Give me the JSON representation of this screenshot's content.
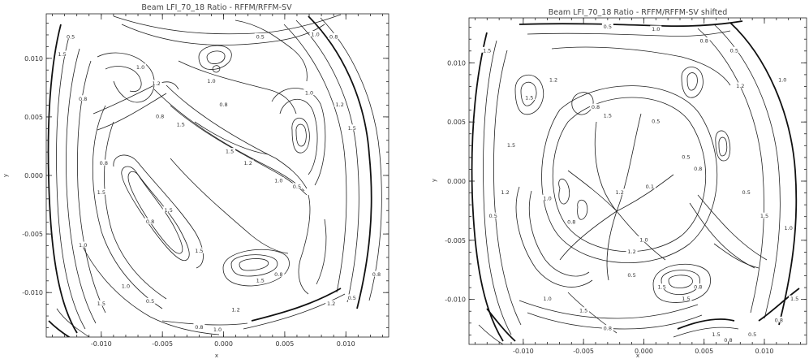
{
  "chart_data": [
    {
      "type": "contour",
      "title": "Beam LFI_70_18 Ratio - RFFM/RFFM-SV",
      "xlabel": "x",
      "ylabel": "y",
      "xlim": [
        -0.0145,
        0.0135
      ],
      "ylim": [
        -0.0138,
        0.0138
      ],
      "xticks": [
        -0.01,
        -0.005,
        0.0,
        0.005,
        0.01
      ],
      "xtick_labels": [
        "-0.010",
        "-0.005",
        "0.000",
        "0.005",
        "0.010"
      ],
      "yticks": [
        -0.01,
        -0.005,
        0.0,
        0.005,
        0.01
      ],
      "ytick_labels": [
        "-0.010",
        "-0.005",
        "0.000",
        "0.005",
        "0.010"
      ],
      "levels": [
        0.5,
        0.8,
        1.0,
        1.2,
        1.5
      ],
      "contour_labels": [
        {
          "text": "0.5",
          "x": -0.0125,
          "y": 0.0118
        },
        {
          "text": "1.5",
          "x": -0.0132,
          "y": 0.0103
        },
        {
          "text": "0.8",
          "x": -0.0115,
          "y": 0.0065
        },
        {
          "text": "1.2",
          "x": -0.0055,
          "y": 0.0078
        },
        {
          "text": "1.0",
          "x": -0.0068,
          "y": 0.0092
        },
        {
          "text": "0.8",
          "x": -0.0052,
          "y": 0.005
        },
        {
          "text": "1.5",
          "x": -0.0035,
          "y": 0.0043
        },
        {
          "text": "1.0",
          "x": -0.001,
          "y": 0.008
        },
        {
          "text": "0.8",
          "x": 0.0,
          "y": 0.006
        },
        {
          "text": "1.5",
          "x": 0.0005,
          "y": 0.002
        },
        {
          "text": "1.2",
          "x": 0.002,
          "y": 0.001
        },
        {
          "text": "0.5",
          "x": 0.006,
          "y": -0.001
        },
        {
          "text": "1.0",
          "x": 0.0045,
          "y": -0.0005
        },
        {
          "text": "0.5",
          "x": 0.003,
          "y": 0.0118
        },
        {
          "text": "1.0",
          "x": 0.0075,
          "y": 0.012
        },
        {
          "text": "0.8",
          "x": 0.009,
          "y": 0.0118
        },
        {
          "text": "1.0",
          "x": 0.007,
          "y": 0.007
        },
        {
          "text": "1.2",
          "x": 0.0095,
          "y": 0.006
        },
        {
          "text": "1.5",
          "x": 0.0105,
          "y": 0.004
        },
        {
          "text": "0.8",
          "x": -0.0098,
          "y": 0.001
        },
        {
          "text": "1.5",
          "x": -0.01,
          "y": -0.0015
        },
        {
          "text": "0.8",
          "x": -0.006,
          "y": -0.004
        },
        {
          "text": "1.5",
          "x": -0.0045,
          "y": -0.003
        },
        {
          "text": "1.0",
          "x": -0.0115,
          "y": -0.006
        },
        {
          "text": "1.5",
          "x": -0.002,
          "y": -0.0065
        },
        {
          "text": "1.5",
          "x": -0.01,
          "y": -0.011
        },
        {
          "text": "1.0",
          "x": -0.008,
          "y": -0.0095
        },
        {
          "text": "0.5",
          "x": -0.006,
          "y": -0.0108
        },
        {
          "text": "0.8",
          "x": 0.0045,
          "y": -0.0085
        },
        {
          "text": "1.5",
          "x": 0.003,
          "y": -0.009
        },
        {
          "text": "1.2",
          "x": 0.001,
          "y": -0.0115
        },
        {
          "text": "0.8",
          "x": -0.002,
          "y": -0.013
        },
        {
          "text": "1.0",
          "x": -0.0005,
          "y": -0.0132
        },
        {
          "text": "1.2",
          "x": 0.0088,
          "y": -0.011
        },
        {
          "text": "0.5",
          "x": 0.0105,
          "y": -0.0105
        },
        {
          "text": "0.8",
          "x": 0.0125,
          "y": -0.0085
        }
      ]
    },
    {
      "type": "contour",
      "title": "Beam LFI_70_18 Ratio - RFFM/RFFM-SV shifted",
      "xlabel": "x",
      "ylabel": "y",
      "xlim": [
        -0.0145,
        0.0135
      ],
      "ylim": [
        -0.0138,
        0.0138
      ],
      "xticks": [
        -0.01,
        -0.005,
        0.0,
        0.005,
        0.01
      ],
      "xtick_labels": [
        "-0.010",
        "-0.005",
        "0.000",
        "0.005",
        "0.010"
      ],
      "yticks": [
        -0.01,
        -0.005,
        0.0,
        0.005,
        0.01
      ],
      "ytick_labels": [
        "-0.010",
        "-0.005",
        "0.000",
        "0.005",
        "0.010"
      ],
      "levels": [
        0.1,
        0.5,
        0.8,
        1.0,
        1.2,
        1.5
      ],
      "contour_labels": [
        {
          "text": "1.5",
          "x": -0.013,
          "y": 0.011
        },
        {
          "text": "0.5",
          "x": -0.003,
          "y": 0.013
        },
        {
          "text": "1.0",
          "x": 0.001,
          "y": 0.0128
        },
        {
          "text": "0.8",
          "x": 0.005,
          "y": 0.0118
        },
        {
          "text": "0.5",
          "x": 0.0075,
          "y": 0.011
        },
        {
          "text": "1.2",
          "x": -0.0075,
          "y": 0.0085
        },
        {
          "text": "1.5",
          "x": -0.0095,
          "y": 0.007
        },
        {
          "text": "0.8",
          "x": -0.004,
          "y": 0.0062
        },
        {
          "text": "1.5",
          "x": -0.003,
          "y": 0.0055
        },
        {
          "text": "0.5",
          "x": 0.001,
          "y": 0.005
        },
        {
          "text": "1.2",
          "x": 0.008,
          "y": 0.008
        },
        {
          "text": "1.0",
          "x": 0.0115,
          "y": 0.0085
        },
        {
          "text": "1.5",
          "x": -0.011,
          "y": 0.003
        },
        {
          "text": "0.1",
          "x": 0.0005,
          "y": -0.0005
        },
        {
          "text": "1.2",
          "x": -0.002,
          "y": -0.001
        },
        {
          "text": "0.5",
          "x": 0.0035,
          "y": 0.002
        },
        {
          "text": "0.8",
          "x": 0.0045,
          "y": 0.001
        },
        {
          "text": "1.2",
          "x": -0.0115,
          "y": -0.001
        },
        {
          "text": "0.5",
          "x": -0.0125,
          "y": -0.003
        },
        {
          "text": "1.0",
          "x": -0.008,
          "y": -0.0015
        },
        {
          "text": "0.8",
          "x": -0.006,
          "y": -0.0035
        },
        {
          "text": "1.2",
          "x": -0.001,
          "y": -0.006
        },
        {
          "text": "1.0",
          "x": 0.0,
          "y": -0.005
        },
        {
          "text": "0.5",
          "x": -0.001,
          "y": -0.008
        },
        {
          "text": "1.5",
          "x": 0.0015,
          "y": -0.009
        },
        {
          "text": "0.5",
          "x": 0.0085,
          "y": -0.001
        },
        {
          "text": "1.5",
          "x": 0.01,
          "y": -0.003
        },
        {
          "text": "1.0",
          "x": 0.012,
          "y": -0.004
        },
        {
          "text": "1.5",
          "x": -0.005,
          "y": -0.011
        },
        {
          "text": "1.0",
          "x": -0.008,
          "y": -0.01
        },
        {
          "text": "0.8",
          "x": -0.003,
          "y": -0.0125
        },
        {
          "text": "1.5",
          "x": 0.0035,
          "y": -0.01
        },
        {
          "text": "0.8",
          "x": 0.0045,
          "y": -0.009
        },
        {
          "text": "1.5",
          "x": 0.006,
          "y": -0.013
        },
        {
          "text": "0.5",
          "x": 0.009,
          "y": -0.013
        },
        {
          "text": "0.8",
          "x": 0.007,
          "y": -0.0135
        },
        {
          "text": "1.5",
          "x": 0.0125,
          "y": -0.01
        },
        {
          "text": "0.8",
          "x": 0.0112,
          "y": -0.0118
        }
      ]
    }
  ]
}
